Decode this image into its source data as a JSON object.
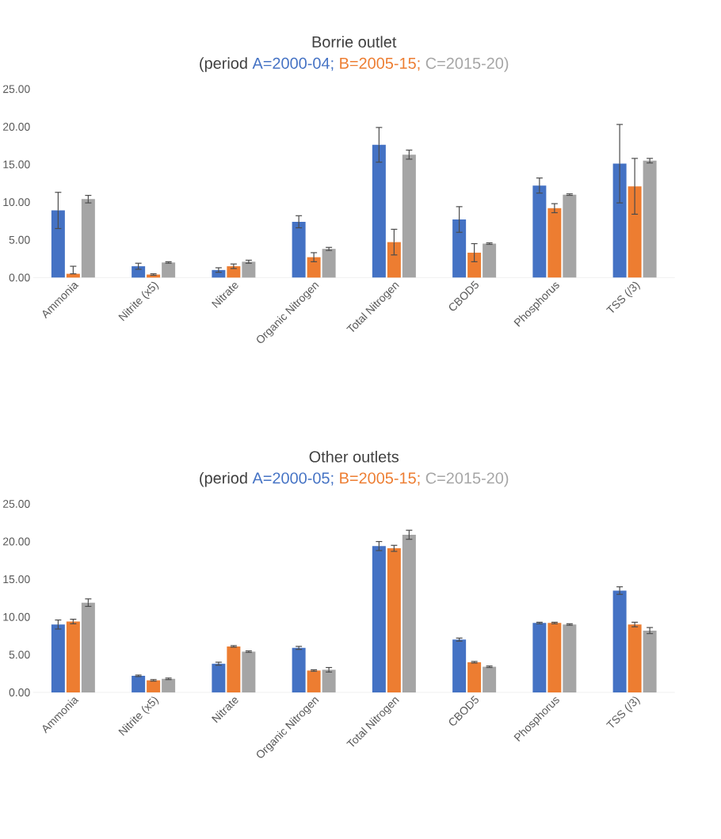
{
  "chart_data": [
    {
      "type": "bar",
      "title": "Borrie outlet",
      "legend_title": "(period",
      "legend": "top",
      "categories": [
        "Ammonia",
        "Nitrite (x5)",
        "Nitrate",
        "Organic Nitrogen",
        "Total Nitrogen",
        "CBOD5",
        "Phosphorus",
        "TSS (/3)"
      ],
      "ylim": [
        0,
        25
      ],
      "yticks": [
        {
          "value": 0,
          "label": "0.00"
        },
        {
          "value": 5,
          "label": "5.00"
        },
        {
          "value": 10,
          "label": "10.00"
        },
        {
          "value": 15,
          "label": "15.00"
        },
        {
          "value": 20,
          "label": "20.00"
        },
        {
          "value": 25,
          "label": "25.00"
        }
      ],
      "series": [
        {
          "name": "A=2000-04;",
          "color": "#4472c4",
          "values": [
            8.9,
            1.5,
            1.0,
            7.4,
            17.6,
            7.7,
            12.2,
            15.1
          ],
          "errors": [
            2.4,
            0.4,
            0.3,
            0.8,
            2.3,
            1.7,
            1.0,
            5.2
          ]
        },
        {
          "name": "B=2005-15;",
          "color": "#ed7d31",
          "values": [
            0.5,
            0.4,
            1.5,
            2.7,
            4.7,
            3.3,
            9.2,
            12.1
          ],
          "errors": [
            [
              0.5,
              1.5
            ],
            0.1,
            0.3,
            0.6,
            1.7,
            1.2,
            0.6,
            3.7
          ]
        },
        {
          "name": "C=2015-20)",
          "color": "#a5a5a5",
          "values": [
            10.4,
            2.0,
            2.1,
            3.8,
            16.3,
            4.5,
            11.0,
            15.5
          ],
          "errors": [
            0.5,
            0.1,
            0.2,
            0.2,
            0.6,
            0.1,
            0.1,
            0.3
          ]
        }
      ]
    },
    {
      "type": "bar",
      "title": "Other outlets",
      "legend_title": "(period",
      "legend": "top",
      "categories": [
        "Ammonia",
        "Nitrite (x5)",
        "Nitrate",
        "Organic Nitrogen",
        "Total Nitrogen",
        "CBOD5",
        "Phosphorus",
        "TSS (/3)"
      ],
      "ylim": [
        0,
        25
      ],
      "yticks": [
        {
          "value": 0,
          "label": "0.00"
        },
        {
          "value": 5,
          "label": "5.00"
        },
        {
          "value": 10,
          "label": "10.00"
        },
        {
          "value": 15,
          "label": "15.00"
        },
        {
          "value": 20,
          "label": "20.00"
        },
        {
          "value": 25,
          "label": "25.00"
        }
      ],
      "series": [
        {
          "name": "A=2000-05;",
          "color": "#4472c4",
          "values": [
            9.0,
            2.2,
            3.8,
            5.9,
            19.4,
            7.0,
            9.2,
            13.5
          ],
          "errors": [
            0.6,
            0.1,
            0.2,
            0.2,
            0.6,
            0.2,
            0.1,
            0.5
          ]
        },
        {
          "name": "B=2005-15;",
          "color": "#ed7d31",
          "values": [
            9.4,
            1.6,
            6.1,
            2.9,
            19.1,
            4.0,
            9.2,
            9.0
          ],
          "errors": [
            0.3,
            0.1,
            0.1,
            0.1,
            0.4,
            0.1,
            0.1,
            0.3
          ]
        },
        {
          "name": "C=2015-20)",
          "color": "#a5a5a5",
          "values": [
            11.9,
            1.8,
            5.4,
            3.0,
            20.9,
            3.4,
            9.0,
            8.2
          ],
          "errors": [
            0.5,
            0.1,
            0.1,
            0.3,
            0.6,
            0.1,
            0.1,
            0.4
          ]
        }
      ]
    }
  ]
}
